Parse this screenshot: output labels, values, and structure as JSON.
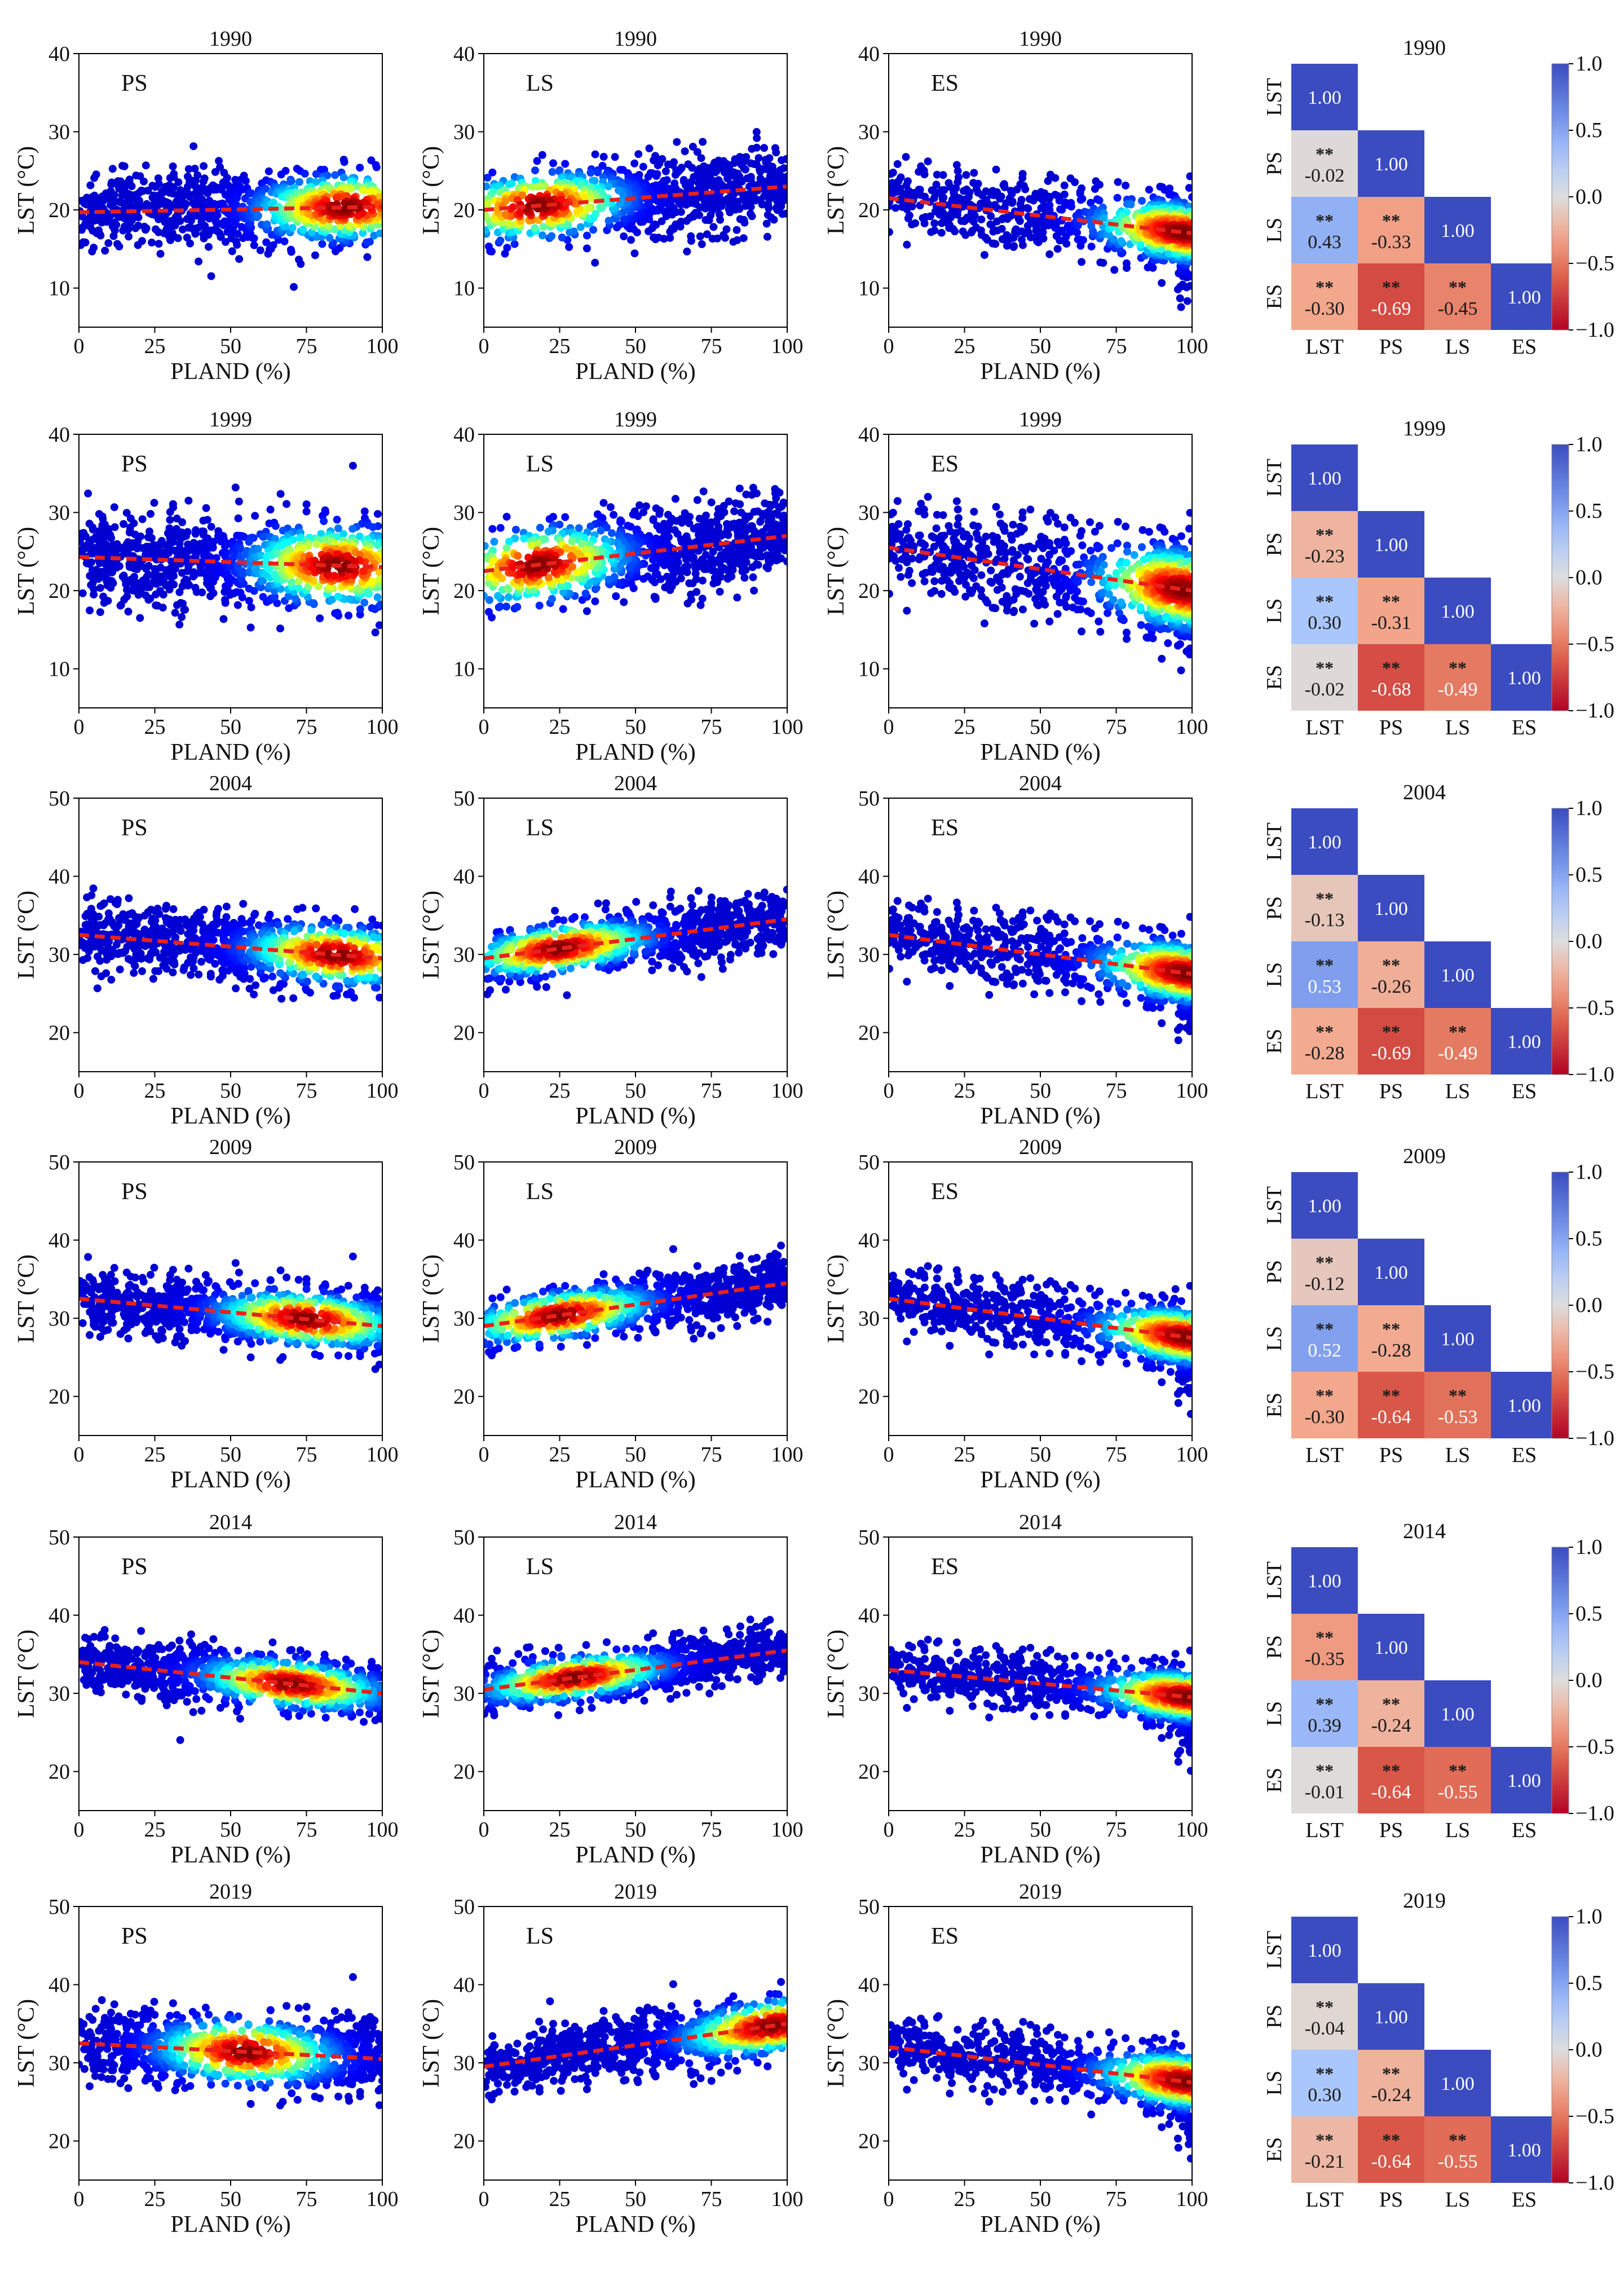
{
  "chart_data": {
    "type": "scatter",
    "description_columns": [
      "PS",
      "LS",
      "ES"
    ],
    "x_label": "PLAND (%)",
    "y_label": "LST (°C)",
    "x_ticks": [
      0,
      25,
      50,
      75,
      100
    ],
    "xlim": [
      0,
      100
    ],
    "heatmap_labels": [
      "LST",
      "PS",
      "LS",
      "ES"
    ],
    "colorbar_ticks": [
      1.0,
      0.5,
      0.0,
      -0.5,
      -1.0
    ],
    "colorbar_tick_labels": [
      "1.0",
      "0.5",
      "0.0",
      "−0.5",
      "−1.0"
    ],
    "significance_marker": "**",
    "diagonal_value": "1.00",
    "years": [
      {
        "year": "1990",
        "ylim": [
          5,
          40
        ],
        "y_ticks": [
          10,
          20,
          30,
          40
        ],
        "scatter": {
          "PS": {
            "trend": [
              19.7,
              20.4
            ],
            "center": 20,
            "spread": 2.5,
            "hot_x": 88
          },
          "LS": {
            "trend": [
              20.0,
              23.0
            ],
            "center": 20.8,
            "spread": 2.5,
            "hot_x": 18
          },
          "ES": {
            "trend": [
              21.5,
              17.0
            ],
            "center": 19.5,
            "spread": 2.2,
            "hot_x": 97
          }
        },
        "corr": {
          "PS_LST": -0.02,
          "LS_LST": 0.43,
          "LS_PS": -0.33,
          "ES_LST": -0.3,
          "ES_PS": -0.69,
          "ES_LS": -0.45
        },
        "corr_labels": {
          "PS_LST": "-0.02",
          "LS_LST": "0.43",
          "LS_PS": "-0.33",
          "ES_LST": "-0.30",
          "ES_PS": "-0.69",
          "ES_LS": "-0.45"
        }
      },
      {
        "year": "1999",
        "ylim": [
          5,
          40
        ],
        "y_ticks": [
          10,
          20,
          30,
          40
        ],
        "scatter": {
          "PS": {
            "trend": [
              24.3,
              23.0
            ],
            "center": 23.5,
            "spread": 3.0,
            "hot_x": 85
          },
          "LS": {
            "trend": [
              22.5,
              27.0
            ],
            "center": 23.0,
            "spread": 2.8,
            "hot_x": 18
          },
          "ES": {
            "trend": [
              25.5,
              20.0
            ],
            "center": 22.5,
            "spread": 3.0,
            "hot_x": 97
          }
        },
        "corr": {
          "PS_LST": -0.23,
          "LS_LST": 0.3,
          "LS_PS": -0.31,
          "ES_LST": -0.02,
          "ES_PS": -0.68,
          "ES_LS": -0.49
        },
        "corr_labels": {
          "PS_LST": "-0.23",
          "LS_LST": "0.30",
          "LS_PS": "-0.31",
          "ES_LST": "-0.02",
          "ES_PS": "-0.68",
          "ES_LS": "-0.49"
        }
      },
      {
        "year": "2004",
        "ylim": [
          15,
          50
        ],
        "y_ticks": [
          20,
          30,
          40,
          50
        ],
        "scatter": {
          "PS": {
            "trend": [
              32.5,
              29.5
            ],
            "center": 31,
            "spread": 2.2,
            "hot_x": 85
          },
          "LS": {
            "trend": [
              29.5,
              34.5
            ],
            "center": 30.5,
            "spread": 1.8,
            "hot_x": 25
          },
          "ES": {
            "trend": [
              32.5,
              27.5
            ],
            "center": 30,
            "spread": 2.2,
            "hot_x": 98
          }
        },
        "corr": {
          "PS_LST": -0.13,
          "LS_LST": 0.53,
          "LS_PS": -0.26,
          "ES_LST": -0.28,
          "ES_PS": -0.69,
          "ES_LS": -0.49
        },
        "corr_labels": {
          "PS_LST": "-0.13",
          "LS_LST": "0.53",
          "LS_PS": "-0.26",
          "ES_LST": "-0.28",
          "ES_PS": "-0.69",
          "ES_LS": "-0.49"
        }
      },
      {
        "year": "2009",
        "ylim": [
          15,
          50
        ],
        "y_ticks": [
          20,
          30,
          40,
          50
        ],
        "scatter": {
          "PS": {
            "trend": [
              32.5,
              29.0
            ],
            "center": 30.5,
            "spread": 2.0,
            "hot_x": 75
          },
          "LS": {
            "trend": [
              29.0,
              34.5
            ],
            "center": 30.5,
            "spread": 1.8,
            "hot_x": 25
          },
          "ES": {
            "trend": [
              32.5,
              27.5
            ],
            "center": 30,
            "spread": 2.0,
            "hot_x": 98
          }
        },
        "corr": {
          "PS_LST": -0.12,
          "LS_LST": 0.52,
          "LS_PS": -0.28,
          "ES_LST": -0.3,
          "ES_PS": -0.64,
          "ES_LS": -0.53
        },
        "corr_labels": {
          "PS_LST": "-0.12",
          "LS_LST": "0.52",
          "LS_PS": "-0.28",
          "ES_LST": "-0.30",
          "ES_PS": "-0.64",
          "ES_LS": "-0.53"
        }
      },
      {
        "year": "2014",
        "ylim": [
          15,
          50
        ],
        "y_ticks": [
          20,
          30,
          40,
          50
        ],
        "scatter": {
          "PS": {
            "trend": [
              34.0,
              30.0
            ],
            "center": 31.5,
            "spread": 1.8,
            "hot_x": 70
          },
          "LS": {
            "trend": [
              30.5,
              35.5
            ],
            "center": 31.5,
            "spread": 1.6,
            "hot_x": 30
          },
          "ES": {
            "trend": [
              33.0,
              29.5
            ],
            "center": 31.5,
            "spread": 1.8,
            "hot_x": 98
          }
        },
        "corr": {
          "PS_LST": -0.35,
          "LS_LST": 0.39,
          "LS_PS": -0.24,
          "ES_LST": -0.01,
          "ES_PS": -0.64,
          "ES_LS": -0.55
        },
        "corr_labels": {
          "PS_LST": "-0.35",
          "LS_LST": "0.39",
          "LS_PS": "-0.24",
          "ES_LST": "-0.01",
          "ES_PS": "-0.64",
          "ES_LS": "-0.55"
        }
      },
      {
        "year": "2019",
        "ylim": [
          15,
          50
        ],
        "y_ticks": [
          20,
          30,
          40,
          50
        ],
        "scatter": {
          "PS": {
            "trend": [
              32.5,
              30.5
            ],
            "center": 32,
            "spread": 2.4,
            "hot_x": 55
          },
          "LS": {
            "trend": [
              29.5,
              35.0
            ],
            "center": 31.5,
            "spread": 2.0,
            "hot_x": 95
          },
          "ES": {
            "trend": [
              32.0,
              27.5
            ],
            "center": 30,
            "spread": 2.0,
            "hot_x": 98
          }
        },
        "corr": {
          "PS_LST": -0.04,
          "LS_LST": 0.3,
          "LS_PS": -0.24,
          "ES_LST": -0.21,
          "ES_PS": -0.64,
          "ES_LS": -0.55
        },
        "corr_labels": {
          "PS_LST": "-0.04",
          "LS_LST": "0.30",
          "LS_PS": "-0.24",
          "ES_LST": "-0.21",
          "ES_PS": "-0.64",
          "ES_LS": "-0.55"
        }
      }
    ]
  }
}
